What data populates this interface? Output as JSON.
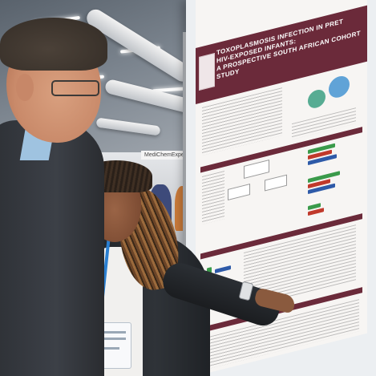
{
  "poster": {
    "title_line1": "TOXOPLASMOSIS INFECTION IN PRET",
    "title_line2": "HIV-EXPOSED INFANTS:",
    "title_line3": "A PROSPECTIVE SOUTH AFRICAN COHORT STUDY",
    "booth_sign": "MediChemExpert"
  },
  "colors": {
    "poster_header": "#6b2a3a",
    "lanyard": "#2a7fd1"
  }
}
